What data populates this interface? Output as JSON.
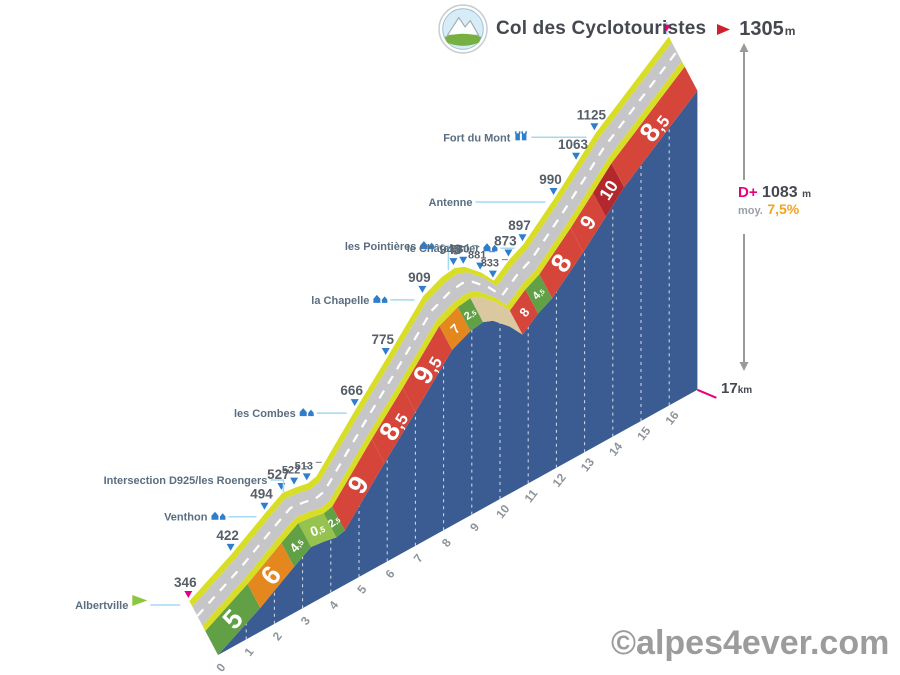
{
  "header": {
    "title": "Col des Cyclotouristes",
    "summit_alt": "1305",
    "summit_unit": "m"
  },
  "gauge": {
    "dplus_label": "D+",
    "dplus_value": "1083",
    "dplus_unit": "m",
    "avg_label": "moy.",
    "avg_value": "7,5%"
  },
  "end_label": {
    "value": "17",
    "unit": "km"
  },
  "watermark": "©alpes4ever.com",
  "chart_data": {
    "type": "area",
    "title": "Col des Cyclotouristes",
    "xlabel": "km",
    "ylabel": "m",
    "x_range": [
      0,
      17
    ],
    "elev_range": [
      346,
      1305
    ],
    "total_distance_km": 17,
    "total_gain_m": 1083,
    "avg_gradient_pct": 7.5,
    "summit": {
      "elev": "1305",
      "unit": "m"
    },
    "profile_points": [
      [
        0,
        346
      ],
      [
        1.5,
        422
      ],
      [
        2.7,
        494
      ],
      [
        3.3,
        527
      ],
      [
        3.75,
        522
      ],
      [
        4.2,
        513
      ],
      [
        4.5,
        520
      ],
      [
        5.9,
        666
      ],
      [
        7,
        775
      ],
      [
        8.3,
        909
      ],
      [
        8.95,
        937
      ],
      [
        9.4,
        943
      ],
      [
        9.75,
        930
      ],
      [
        10.35,
        881
      ],
      [
        10.8,
        833
      ],
      [
        11.35,
        873
      ],
      [
        11.85,
        897
      ],
      [
        12.95,
        990
      ],
      [
        13.75,
        1063
      ],
      [
        14.4,
        1125
      ],
      [
        17,
        1305
      ]
    ],
    "segments": [
      {
        "from": 0,
        "to": 1.5,
        "gradient": "5",
        "color": "green"
      },
      {
        "from": 1.5,
        "to": 2.7,
        "gradient": "6",
        "color": "orange"
      },
      {
        "from": 2.7,
        "to": 3.3,
        "gradient": "4,5",
        "color": "green"
      },
      {
        "from": 3.3,
        "to": 4.2,
        "gradient": "0,5",
        "color": "lightgreen"
      },
      {
        "from": 4.2,
        "to": 4.5,
        "gradient": "2,5",
        "color": "green"
      },
      {
        "from": 4.5,
        "to": 5.9,
        "gradient": "9",
        "color": "red"
      },
      {
        "from": 5.9,
        "to": 7,
        "gradient": "8,5",
        "color": "red"
      },
      {
        "from": 7,
        "to": 8.3,
        "gradient": "9,5",
        "color": "red"
      },
      {
        "from": 8.3,
        "to": 8.95,
        "gradient": "7",
        "color": "orange"
      },
      {
        "from": 8.95,
        "to": 9.4,
        "gradient": "2,5",
        "color": "green"
      },
      {
        "from": 9.4,
        "to": 10.8,
        "gradient": "",
        "color": "descent"
      },
      {
        "from": 10.8,
        "to": 11.35,
        "gradient": "8",
        "color": "red"
      },
      {
        "from": 11.35,
        "to": 11.85,
        "gradient": "4,5",
        "color": "green"
      },
      {
        "from": 11.85,
        "to": 12.95,
        "gradient": "8",
        "color": "red"
      },
      {
        "from": 12.95,
        "to": 13.75,
        "gradient": "9",
        "color": "red"
      },
      {
        "from": 13.75,
        "to": 14.4,
        "gradient": "10",
        "color": "darkred"
      },
      {
        "from": 14.4,
        "to": 17,
        "gradient": "8,5",
        "color": "red"
      }
    ],
    "markers": [
      {
        "elev": "346",
        "km": 0,
        "accent": true
      },
      {
        "elev": "422",
        "km": 1.5
      },
      {
        "elev": "494",
        "km": 2.7
      },
      {
        "elev": "527",
        "km": 3.3
      },
      {
        "elev": "522",
        "km": 3.75,
        "tick": true,
        "small": true
      },
      {
        "elev": "513",
        "km": 4.2,
        "tick": true,
        "small": true
      },
      {
        "elev": "666",
        "km": 5.9
      },
      {
        "elev": "775",
        "km": 7
      },
      {
        "elev": "909",
        "km": 8.3
      },
      {
        "elev": "943",
        "km": 9.4
      },
      {
        "elev": "930",
        "km": 9.75,
        "tick": true,
        "small": true
      },
      {
        "elev": "881",
        "km": 10.35,
        "tick": true,
        "small": true
      },
      {
        "elev": "833",
        "km": 10.8,
        "tick": true,
        "small": true
      },
      {
        "elev": "873",
        "km": 11.35
      },
      {
        "elev": "897",
        "km": 11.85
      },
      {
        "elev": "990",
        "km": 12.95
      },
      {
        "elev": "1063",
        "km": 13.75
      },
      {
        "elev": "1125",
        "km": 14.4
      }
    ],
    "places": [
      {
        "name": "Albertville",
        "km": 0,
        "icon": "flag-green",
        "leader": 30
      },
      {
        "name": "Venthon",
        "km": 2.7,
        "icon": "houses",
        "leader": 28
      },
      {
        "name": "Intersection D925/les Roengers",
        "km": 3.55,
        "icon": "",
        "leader": 10,
        "bend": true,
        "raise": 14
      },
      {
        "name": "les Combes",
        "km": 5.9,
        "icon": "houses",
        "leader": 30
      },
      {
        "name": "la Chapelle",
        "km": 8.3,
        "icon": "houses",
        "leader": 24
      },
      {
        "name": "les Pointières",
        "km": 9.4,
        "icon": "houses",
        "leader": 8,
        "bend": true,
        "raise": 26
      },
      {
        "name": "le Châtaignier",
        "km": 11.85,
        "icon": "houses",
        "leader": 14
      },
      {
        "name": "Antenne",
        "km": 12.95,
        "icon": "",
        "leader": 70
      },
      {
        "name": "Fort du Mont",
        "km": 14.4,
        "icon": "castle",
        "leader": 55
      }
    ],
    "km_ticks": [
      "0",
      "1",
      "2",
      "3",
      "4",
      "5",
      "6",
      "7",
      "8",
      "9",
      "10",
      "11",
      "12",
      "13",
      "14",
      "15",
      "16"
    ],
    "colors": {
      "green": "#61a044",
      "lightgreen": "#96c24f",
      "orange": "#e5871f",
      "red": "#d6453a",
      "darkred": "#b2282c",
      "descent": "#d9c8a0",
      "face": "#3a5c92",
      "road": "#c6c6c8",
      "stripe": "#d8dd26",
      "centerline": "#ffffff",
      "leader": "#a5d8f2",
      "marker_blue": "#2f7ecb",
      "accent_magenta": "#e6007e",
      "elev_text": "#565e68",
      "place_text": "#5a6e80",
      "km_text": "#8d949b"
    }
  }
}
